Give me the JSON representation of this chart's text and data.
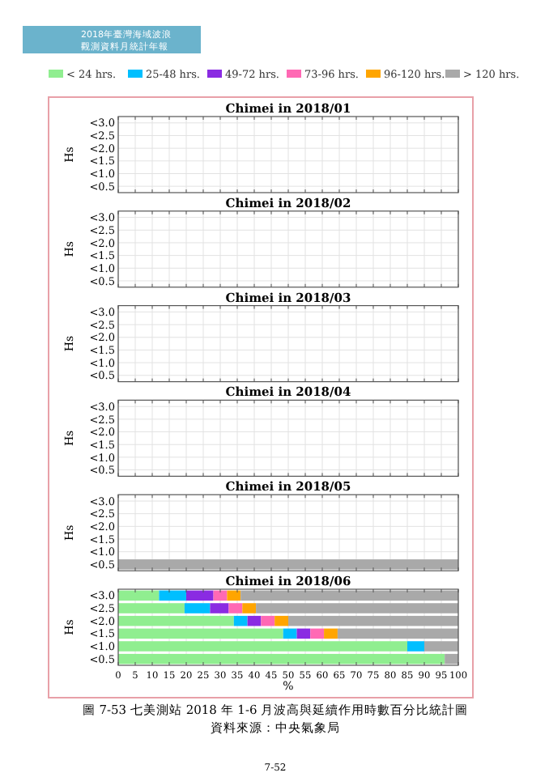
{
  "chart_data": [
    {
      "type": "bar",
      "orientation": "horizontal",
      "title": "Chimei in 2018/01",
      "ylabel": "Hs",
      "categories": [
        "<3.0",
        "<2.5",
        "<2.0",
        "<1.5",
        "<1.0",
        "<0.5"
      ],
      "xlim": [
        0,
        100
      ],
      "xticks": [
        0,
        5,
        10,
        15,
        20,
        25,
        30,
        35,
        40,
        45,
        50,
        55,
        60,
        65,
        70,
        75,
        80,
        85,
        90,
        95,
        100
      ],
      "grid": true,
      "tick_labels": "y",
      "annotations": [
        "2018年臺灣海域波浪",
        "觀測資料月統計年報"
      ]
    },
    {
      "type": "bar",
      "orientation": "horizontal",
      "title": "Chimei in 2018/02",
      "ylabel": "Hs",
      "categories": [
        "<3.0",
        "<2.5",
        "<2.0",
        "<1.5",
        "<1.0",
        "<0.5"
      ],
      "xlim": [
        0,
        100
      ],
      "xticks": [
        0,
        5,
        10,
        15,
        20,
        25,
        30,
        35,
        40,
        45,
        50,
        55,
        60,
        65,
        70,
        75,
        80,
        85,
        90,
        95,
        100
      ],
      "grid": true,
      "tick_labels": "y"
    },
    {
      "type": "bar",
      "orientation": "horizontal",
      "title": "Chimei in 2018/03",
      "ylabel": "Hs",
      "categories": [
        "<3.0",
        "<2.5",
        "<2.0",
        "<1.5",
        "<1.0",
        "<0.5"
      ],
      "xlim": [
        0,
        100
      ],
      "xticks": [
        0,
        5,
        10,
        15,
        20,
        25,
        30,
        35,
        40,
        45,
        50,
        55,
        60,
        65,
        70,
        75,
        80,
        85,
        90,
        95,
        100
      ],
      "grid": true,
      "tick_labels": "y"
    },
    {
      "type": "bar",
      "orientation": "horizontal",
      "title": "Chimei in 2018/04",
      "ylabel": "Hs",
      "categories": [
        "<3.0",
        "<2.5",
        "<2.0",
        "<1.5",
        "<1.0",
        "<0.5"
      ],
      "xlim": [
        0,
        100
      ],
      "xticks": [
        0,
        5,
        10,
        15,
        20,
        25,
        30,
        35,
        40,
        45,
        50,
        55,
        60,
        65,
        70,
        75,
        80,
        85,
        90,
        95,
        100
      ],
      "grid": true,
      "tick_labels": "y"
    },
    {
      "type": "bar",
      "orientation": "horizontal",
      "stacked": true,
      "title": "Chimei in 2018/05",
      "ylabel": "Hs",
      "categories": [
        "<3.0",
        "<2.5",
        "<2.0",
        "<1.5",
        "<1.0",
        "<0.5"
      ],
      "xlim": [
        0,
        100
      ],
      "xticks": [
        0,
        5,
        10,
        15,
        20,
        25,
        30,
        35,
        40,
        45,
        50,
        55,
        60,
        65,
        70,
        75,
        80,
        85,
        90,
        95,
        100
      ],
      "grid": true,
      "tick_labels": "y",
      "series": [
        {
          "color": "#a9a9a9",
          "values": [
            null,
            null,
            null,
            null,
            null,
            100
          ]
        }
      ]
    },
    {
      "type": "bar",
      "orientation": "horizontal",
      "stacked": true,
      "title": "Chimei in 2018/06",
      "ylabel": "Hs",
      "xlabel": "%",
      "categories": [
        "<3.0",
        "<2.5",
        "<2.0",
        "<1.5",
        "<1.0",
        "<0.5"
      ],
      "xlim": [
        0,
        100
      ],
      "xticks": [
        0,
        5,
        10,
        15,
        20,
        25,
        30,
        35,
        40,
        45,
        50,
        55,
        60,
        65,
        70,
        75,
        80,
        85,
        90,
        95,
        100
      ],
      "grid": true,
      "legend": "top",
      "annotations": [
        "圖 7-53 七美測站 2018 年 1-6 月波高與延續作用時數百分比統計圖",
        "資料來源：中央氣象局",
        "7-52"
      ],
      "series": [
        {
          "name": "< 24 hrs.",
          "color": "#90ee90",
          "values": [
            12,
            19.5,
            34,
            48.5,
            85,
            96
          ]
        },
        {
          "name": "25-48 hrs.",
          "color": "#00bfff",
          "values": [
            8,
            7.5,
            4,
            4,
            5,
            null
          ]
        },
        {
          "name": "49-72 hrs.",
          "color": "#8a2be2",
          "values": [
            8,
            5.5,
            4,
            4,
            null,
            null
          ]
        },
        {
          "name": "73-96 hrs.",
          "color": "#ff69b4",
          "values": [
            4,
            4,
            4,
            4,
            null,
            null
          ]
        },
        {
          "name": "96-120 hrs.",
          "color": "#ffa500",
          "values": [
            4,
            4,
            4,
            4,
            null,
            null
          ]
        },
        {
          "name": "> 120 hrs.",
          "color": "#a9a9a9",
          "values": [
            64,
            59.5,
            50,
            35.5,
            10,
            4
          ]
        }
      ]
    }
  ]
}
